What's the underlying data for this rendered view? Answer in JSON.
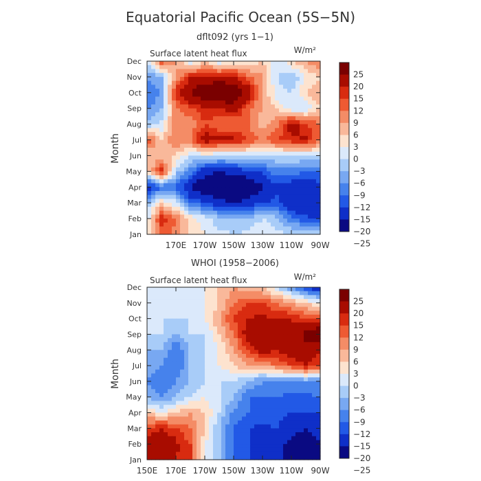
{
  "title": "Equatorial Pacific Ocean (5S−5N)",
  "colors": {
    "ramp": [
      "#0a0a82",
      "#0f2fc8",
      "#2259e6",
      "#4682ec",
      "#78a8f2",
      "#a8ccf8",
      "#dbe9fb",
      "#fde3cf",
      "#f9b89a",
      "#f48c66",
      "#ee5a33",
      "#d82b10",
      "#a80c00",
      "#7a0000"
    ]
  },
  "chart_data": [
    {
      "type": "heatmap",
      "subtitle": "dflt092 (yrs 1−1)",
      "variable_label": "Surface latent heat flux",
      "units": "W/m²",
      "ylabel": "Month",
      "months": [
        "Jan",
        "Feb",
        "Mar",
        "Apr",
        "May",
        "Jun",
        "Jul",
        "Aug",
        "Sep",
        "Oct",
        "Nov",
        "Dec"
      ],
      "x_ticks": [
        {
          "value": 170,
          "label": "170E"
        },
        {
          "value": 190,
          "label": "170W"
        },
        {
          "value": 210,
          "label": "150W"
        },
        {
          "value": 230,
          "label": "130W"
        },
        {
          "value": 250,
          "label": "110W"
        },
        {
          "value": 270,
          "label": "90W"
        }
      ],
      "xlim_degE": [
        150,
        270
      ],
      "colorbar_levels": [
        "25",
        "20",
        "15",
        "12",
        "9",
        "6",
        "3",
        "0",
        "−3",
        "−6",
        "−9",
        "−12",
        "−15",
        "−20",
        "−25"
      ],
      "lon_grid_degE": [
        150,
        160,
        170,
        180,
        190,
        200,
        210,
        220,
        230,
        240,
        250,
        260,
        270
      ],
      "values": [
        [
          2,
          10,
          8,
          3,
          0,
          -2,
          -3,
          -2,
          0,
          -2,
          -3,
          -2,
          -3
        ],
        [
          -2,
          14,
          9,
          2,
          -2,
          -5,
          -6,
          -6,
          -3,
          -5,
          -12,
          -14,
          -16
        ],
        [
          -6,
          2,
          -2,
          -13,
          -14,
          -18,
          -20,
          -18,
          -15,
          -14,
          -18,
          -20,
          -18
        ],
        [
          -18,
          -12,
          -13,
          -20,
          -26,
          -28,
          -27,
          -26,
          -20,
          -16,
          -18,
          -20,
          -16
        ],
        [
          2,
          15,
          -4,
          -10,
          -18,
          -20,
          -18,
          -16,
          -14,
          -10,
          -10,
          -12,
          -12
        ],
        [
          3,
          3,
          3,
          -3,
          -2,
          -3,
          -3,
          -3,
          -3,
          -3,
          -3,
          -3,
          -3
        ],
        [
          12,
          3,
          9,
          9,
          18,
          16,
          16,
          12,
          9,
          12,
          14,
          16,
          9
        ],
        [
          -6,
          -2,
          9,
          6,
          12,
          9,
          8,
          9,
          4,
          8,
          18,
          12,
          9
        ],
        [
          -10,
          -6,
          8,
          12,
          14,
          15,
          18,
          10,
          6,
          3,
          -3,
          -3,
          3
        ],
        [
          -12,
          -9,
          15,
          20,
          26,
          28,
          24,
          18,
          6,
          -2,
          -3,
          3,
          6
        ],
        [
          -9,
          -6,
          6,
          15,
          15,
          16,
          16,
          10,
          6,
          -3,
          -6,
          0,
          3
        ],
        [
          -3,
          12,
          6,
          -3,
          3,
          -3,
          0,
          0,
          3,
          -3,
          3,
          6,
          9
        ]
      ]
    },
    {
      "type": "heatmap",
      "subtitle": "WHOI (1958−2006)",
      "variable_label": "Surface latent heat flux",
      "units": "W/m²",
      "ylabel": "Month",
      "months": [
        "Jan",
        "Feb",
        "Mar",
        "Apr",
        "May",
        "Jun",
        "Jul",
        "Aug",
        "Sep",
        "Oct",
        "Nov",
        "Dec"
      ],
      "x_ticks": [
        {
          "value": 150,
          "label": "150E"
        },
        {
          "value": 170,
          "label": "170E"
        },
        {
          "value": 190,
          "label": "170W"
        },
        {
          "value": 210,
          "label": "150W"
        },
        {
          "value": 230,
          "label": "130W"
        },
        {
          "value": 250,
          "label": "110W"
        },
        {
          "value": 270,
          "label": "90W"
        }
      ],
      "xlim_degE": [
        150,
        270
      ],
      "colorbar_levels": [
        "25",
        "20",
        "15",
        "12",
        "9",
        "6",
        "3",
        "0",
        "−3",
        "−6",
        "−9",
        "−12",
        "−15",
        "−20",
        "−25"
      ],
      "lon_grid_degE": [
        150,
        160,
        170,
        180,
        190,
        200,
        210,
        220,
        230,
        240,
        250,
        260,
        270
      ],
      "values": [
        [
          15,
          18,
          15,
          12,
          0,
          -6,
          -12,
          -15,
          -18,
          -20,
          -20,
          -22,
          -20
        ],
        [
          17,
          20,
          16,
          12,
          0,
          -6,
          -12,
          -15,
          -18,
          -18,
          -22,
          -24,
          -20
        ],
        [
          12,
          15,
          12,
          9,
          3,
          -6,
          -12,
          -15,
          -16,
          -15,
          -18,
          -20,
          -18
        ],
        [
          3,
          0,
          3,
          6,
          3,
          -3,
          -10,
          -12,
          -13,
          -13,
          -15,
          -15,
          -15
        ],
        [
          -6,
          -9,
          -6,
          -3,
          0,
          -3,
          -6,
          -12,
          -12,
          -12,
          -13,
          -13,
          -12
        ],
        [
          -9,
          -12,
          -9,
          -6,
          -3,
          -3,
          -3,
          -6,
          -9,
          -9,
          -10,
          -9,
          -9
        ],
        [
          -6,
          -9,
          -12,
          -6,
          -3,
          0,
          3,
          6,
          6,
          9,
          12,
          15,
          12
        ],
        [
          -6,
          -6,
          -12,
          -6,
          -3,
          0,
          6,
          12,
          18,
          15,
          18,
          18,
          15
        ],
        [
          -3,
          -3,
          -6,
          -3,
          -3,
          3,
          9,
          18,
          18,
          18,
          15,
          22,
          26
        ],
        [
          -3,
          -3,
          -3,
          -3,
          0,
          6,
          12,
          15,
          16,
          15,
          15,
          12,
          12
        ],
        [
          -3,
          -3,
          -3,
          -3,
          0,
          3,
          9,
          12,
          12,
          9,
          6,
          3,
          0
        ],
        [
          -3,
          -3,
          -3,
          -2,
          0,
          3,
          6,
          3,
          3,
          -3,
          -9,
          -15,
          -20
        ]
      ]
    }
  ]
}
